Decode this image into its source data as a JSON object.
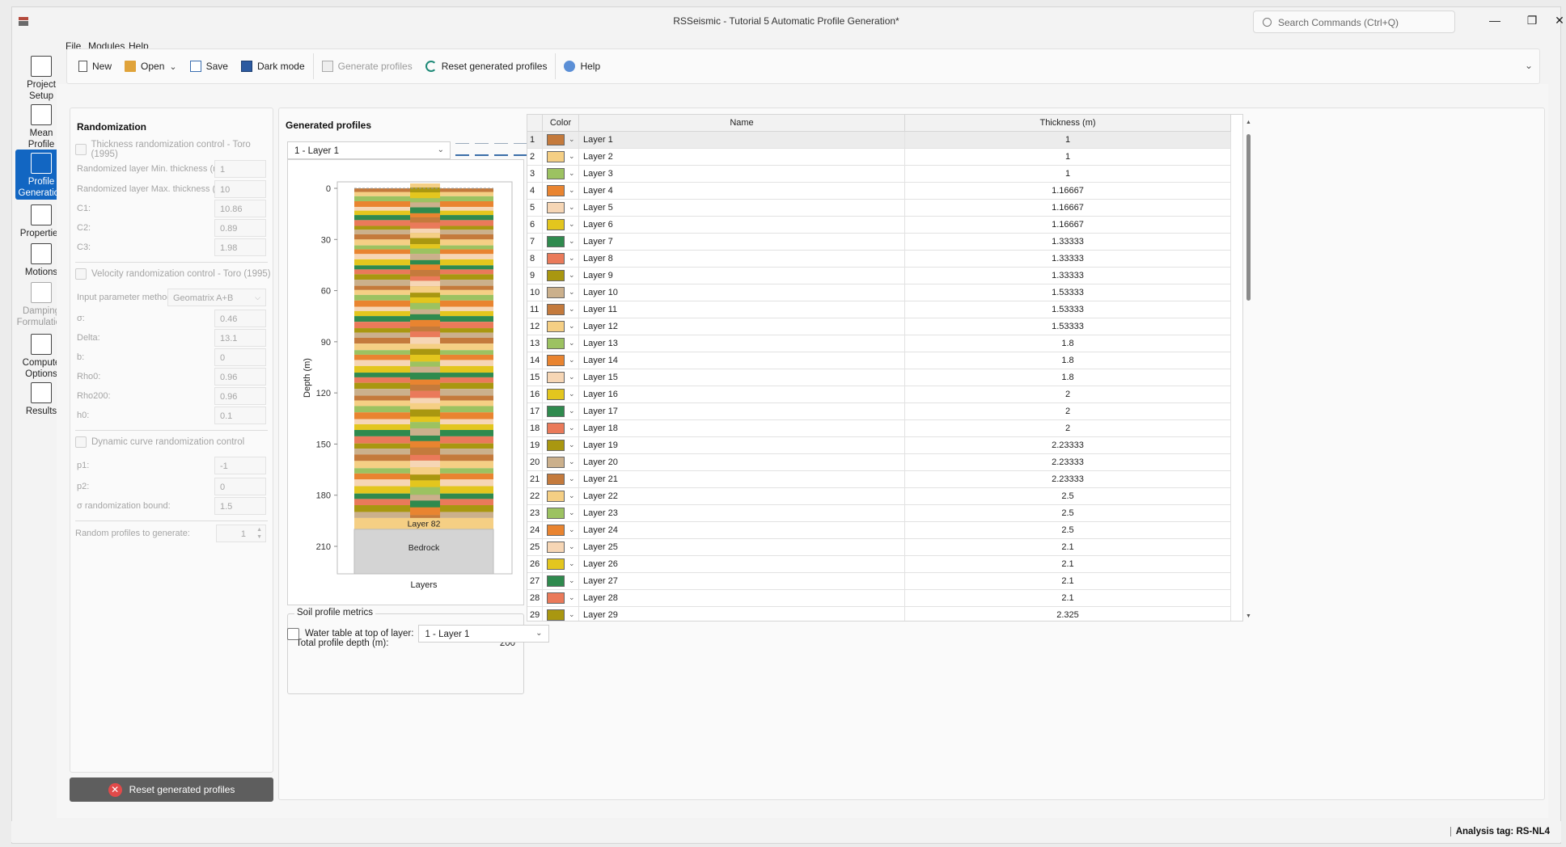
{
  "window": {
    "title": "RSSeismic - Tutorial 5 Automatic Profile Generation*",
    "search_placeholder": "Search Commands (Ctrl+Q)"
  },
  "menu": [
    "File",
    "Modules",
    "Help"
  ],
  "toolbar": {
    "new": "New",
    "open": "Open",
    "save": "Save",
    "dark_mode": "Dark mode",
    "generate_profiles": "Generate profiles",
    "reset_generated_profiles": "Reset generated profiles",
    "help": "Help"
  },
  "sidenav": [
    {
      "label": "Project Setup",
      "state": "normal"
    },
    {
      "label": "Mean Profile",
      "state": "normal"
    },
    {
      "label": "Profile Generation",
      "state": "active"
    },
    {
      "label": "Properties",
      "state": "normal"
    },
    {
      "label": "Motions",
      "state": "normal"
    },
    {
      "label": "Damping Formulation",
      "state": "disabled"
    },
    {
      "label": "Compute Options",
      "state": "normal"
    },
    {
      "label": "Results",
      "state": "normal"
    }
  ],
  "randomization": {
    "title": "Randomization",
    "thickness_check": "Thickness randomization control - Toro (1995)",
    "min_thickness_label": "Randomized layer Min. thickness (m):",
    "min_thickness": "1",
    "max_thickness_label": "Randomized layer Max. thickness (m):",
    "max_thickness": "10",
    "c1_label": "C1:",
    "c1": "10.86",
    "c2_label": "C2:",
    "c2": "0.89",
    "c3_label": "C3:",
    "c3": "1.98",
    "velocity_check": "Velocity randomization control - Toro (1995)",
    "input_method_label": "Input parameter method:",
    "input_method": "Geomatrix A+B",
    "sigma_label": "σ:",
    "sigma": "0.46",
    "delta_label": "Delta:",
    "delta": "13.1",
    "b_label": "b:",
    "b": "0",
    "rho0_label": "Rho0:",
    "rho0": "0.96",
    "rho200_label": "Rho200:",
    "rho200": "0.96",
    "h0_label": "h0:",
    "h0": "0.1",
    "dynamic_check": "Dynamic curve randomization control",
    "p1_label": "p1:",
    "p1": "-1",
    "p2_label": "p2:",
    "p2": "0",
    "sigma_bound_label": "σ randomization bound:",
    "sigma_bound": "1.5",
    "random_profiles_label": "Random profiles to generate:",
    "random_profiles": "1",
    "reset_button": "Reset generated profiles"
  },
  "generated": {
    "title": "Generated profiles",
    "layer_select": "1 - Layer 1",
    "water_table_label": "Water table at top of layer:",
    "water_table_value": "1 - Layer 1",
    "metrics_title": "Soil profile metrics",
    "total_depth_label": "Total profile depth (m):",
    "total_depth": "200",
    "table_headers": {
      "color": "Color",
      "name": "Name",
      "thickness": "Thickness (m)"
    },
    "table_rows": [
      {
        "n": "1",
        "color": "#c47a3c",
        "name": "Layer 1",
        "thickness": "1"
      },
      {
        "n": "2",
        "color": "#f5cf84",
        "name": "Layer 2",
        "thickness": "1"
      },
      {
        "n": "3",
        "color": "#9cc261",
        "name": "Layer 3",
        "thickness": "1"
      },
      {
        "n": "4",
        "color": "#e98430",
        "name": "Layer 4",
        "thickness": "1.16667"
      },
      {
        "n": "5",
        "color": "#f6d6b5",
        "name": "Layer 5",
        "thickness": "1.16667"
      },
      {
        "n": "6",
        "color": "#e3c61e",
        "name": "Layer 6",
        "thickness": "1.16667"
      },
      {
        "n": "7",
        "color": "#2f8a4e",
        "name": "Layer 7",
        "thickness": "1.33333"
      },
      {
        "n": "8",
        "color": "#ea7a5a",
        "name": "Layer 8",
        "thickness": "1.33333"
      },
      {
        "n": "9",
        "color": "#a99710",
        "name": "Layer 9",
        "thickness": "1.33333"
      },
      {
        "n": "10",
        "color": "#cbb08c",
        "name": "Layer 10",
        "thickness": "1.53333"
      },
      {
        "n": "11",
        "color": "#c47a3c",
        "name": "Layer 11",
        "thickness": "1.53333"
      },
      {
        "n": "12",
        "color": "#f5cf84",
        "name": "Layer 12",
        "thickness": "1.53333"
      },
      {
        "n": "13",
        "color": "#9cc261",
        "name": "Layer 13",
        "thickness": "1.8"
      },
      {
        "n": "14",
        "color": "#e98430",
        "name": "Layer 14",
        "thickness": "1.8"
      },
      {
        "n": "15",
        "color": "#f6d6b5",
        "name": "Layer 15",
        "thickness": "1.8"
      },
      {
        "n": "16",
        "color": "#e3c61e",
        "name": "Layer 16",
        "thickness": "2"
      },
      {
        "n": "17",
        "color": "#2f8a4e",
        "name": "Layer 17",
        "thickness": "2"
      },
      {
        "n": "18",
        "color": "#ea7a5a",
        "name": "Layer 18",
        "thickness": "2"
      },
      {
        "n": "19",
        "color": "#a99710",
        "name": "Layer 19",
        "thickness": "2.23333"
      },
      {
        "n": "20",
        "color": "#cbb08c",
        "name": "Layer 20",
        "thickness": "2.23333"
      },
      {
        "n": "21",
        "color": "#c47a3c",
        "name": "Layer 21",
        "thickness": "2.23333"
      },
      {
        "n": "22",
        "color": "#f5cf84",
        "name": "Layer 22",
        "thickness": "2.5"
      },
      {
        "n": "23",
        "color": "#9cc261",
        "name": "Layer 23",
        "thickness": "2.5"
      },
      {
        "n": "24",
        "color": "#e98430",
        "name": "Layer 24",
        "thickness": "2.5"
      },
      {
        "n": "25",
        "color": "#f6d6b5",
        "name": "Layer 25",
        "thickness": "2.1"
      },
      {
        "n": "26",
        "color": "#e3c61e",
        "name": "Layer 26",
        "thickness": "2.1"
      },
      {
        "n": "27",
        "color": "#2f8a4e",
        "name": "Layer 27",
        "thickness": "2.1"
      },
      {
        "n": "28",
        "color": "#ea7a5a",
        "name": "Layer 28",
        "thickness": "2.1"
      },
      {
        "n": "29",
        "color": "#a99710",
        "name": "Layer 29",
        "thickness": "2.325"
      }
    ]
  },
  "chart_data": {
    "type": "bar",
    "ylabel": "Depth (m)",
    "xlabel": "Layers",
    "y_ticks": [
      "0",
      "30",
      "60",
      "90",
      "120",
      "150",
      "180",
      "210"
    ],
    "ylim": [
      0,
      210
    ],
    "y_inverted": true,
    "profile_depth": 200,
    "bedrock_label": "Bedrock",
    "last_layer_label": "Layer 82",
    "layer_colors": [
      "#c47a3c",
      "#f5cf84",
      "#9cc261",
      "#e98430",
      "#f6d6b5",
      "#e3c61e",
      "#2f8a4e",
      "#ea7a5a",
      "#a99710",
      "#cbb08c"
    ],
    "bedrock_color": "#d4d4d4"
  },
  "status": {
    "analysis_tag": "Analysis tag: RS-NL4"
  }
}
